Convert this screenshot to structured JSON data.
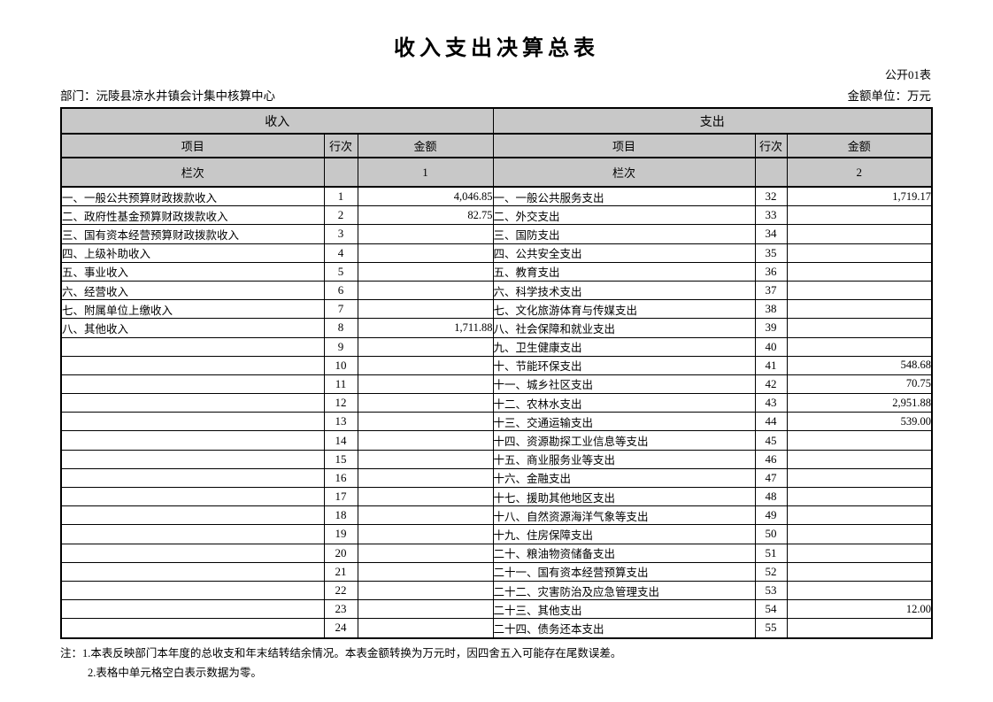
{
  "page": {
    "title": "收入支出决算总表",
    "doc_label": "公开01表",
    "department_label": "部门：沅陵县凉水井镇会计集中核算中心",
    "unit_label": "金额单位：万元"
  },
  "colors": {
    "header_bg": "#c8c8c8",
    "border": "#000000",
    "text": "#000000"
  },
  "table": {
    "sections": {
      "income": "收入",
      "expense": "支出"
    },
    "columns": {
      "item": "项目",
      "line_no": "行次",
      "amount": "金额"
    },
    "lanci_label": "栏次",
    "income_col_index": "1",
    "expense_col_index": "2",
    "rows": [
      {
        "income_item": "一、一般公共预算财政拨款收入",
        "income_line": "1",
        "income_amount": "4,046.85",
        "expense_item": "一、一般公共服务支出",
        "expense_line": "32",
        "expense_amount": "1,719.17"
      },
      {
        "income_item": "二、政府性基金预算财政拨款收入",
        "income_line": "2",
        "income_amount": "82.75",
        "expense_item": "二、外交支出",
        "expense_line": "33",
        "expense_amount": ""
      },
      {
        "income_item": "三、国有资本经营预算财政拨款收入",
        "income_line": "3",
        "income_amount": "",
        "expense_item": "三、国防支出",
        "expense_line": "34",
        "expense_amount": ""
      },
      {
        "income_item": "四、上级补助收入",
        "income_line": "4",
        "income_amount": "",
        "expense_item": "四、公共安全支出",
        "expense_line": "35",
        "expense_amount": ""
      },
      {
        "income_item": "五、事业收入",
        "income_line": "5",
        "income_amount": "",
        "expense_item": "五、教育支出",
        "expense_line": "36",
        "expense_amount": ""
      },
      {
        "income_item": "六、经营收入",
        "income_line": "6",
        "income_amount": "",
        "expense_item": "六、科学技术支出",
        "expense_line": "37",
        "expense_amount": ""
      },
      {
        "income_item": "七、附属单位上缴收入",
        "income_line": "7",
        "income_amount": "",
        "expense_item": "七、文化旅游体育与传媒支出",
        "expense_line": "38",
        "expense_amount": ""
      },
      {
        "income_item": "八、其他收入",
        "income_line": "8",
        "income_amount": "1,711.88",
        "expense_item": "八、社会保障和就业支出",
        "expense_line": "39",
        "expense_amount": ""
      },
      {
        "income_item": "",
        "income_line": "9",
        "income_amount": "",
        "expense_item": "九、卫生健康支出",
        "expense_line": "40",
        "expense_amount": ""
      },
      {
        "income_item": "",
        "income_line": "10",
        "income_amount": "",
        "expense_item": "十、节能环保支出",
        "expense_line": "41",
        "expense_amount": "548.68"
      },
      {
        "income_item": "",
        "income_line": "11",
        "income_amount": "",
        "expense_item": "十一、城乡社区支出",
        "expense_line": "42",
        "expense_amount": "70.75"
      },
      {
        "income_item": "",
        "income_line": "12",
        "income_amount": "",
        "expense_item": "十二、农林水支出",
        "expense_line": "43",
        "expense_amount": "2,951.88"
      },
      {
        "income_item": "",
        "income_line": "13",
        "income_amount": "",
        "expense_item": "十三、交通运输支出",
        "expense_line": "44",
        "expense_amount": "539.00"
      },
      {
        "income_item": "",
        "income_line": "14",
        "income_amount": "",
        "expense_item": "十四、资源勘探工业信息等支出",
        "expense_line": "45",
        "expense_amount": ""
      },
      {
        "income_item": "",
        "income_line": "15",
        "income_amount": "",
        "expense_item": "十五、商业服务业等支出",
        "expense_line": "46",
        "expense_amount": ""
      },
      {
        "income_item": "",
        "income_line": "16",
        "income_amount": "",
        "expense_item": "十六、金融支出",
        "expense_line": "47",
        "expense_amount": ""
      },
      {
        "income_item": "",
        "income_line": "17",
        "income_amount": "",
        "expense_item": "十七、援助其他地区支出",
        "expense_line": "48",
        "expense_amount": ""
      },
      {
        "income_item": "",
        "income_line": "18",
        "income_amount": "",
        "expense_item": "十八、自然资源海洋气象等支出",
        "expense_line": "49",
        "expense_amount": ""
      },
      {
        "income_item": "",
        "income_line": "19",
        "income_amount": "",
        "expense_item": "十九、住房保障支出",
        "expense_line": "50",
        "expense_amount": ""
      },
      {
        "income_item": "",
        "income_line": "20",
        "income_amount": "",
        "expense_item": "二十、粮油物资储备支出",
        "expense_line": "51",
        "expense_amount": ""
      },
      {
        "income_item": "",
        "income_line": "21",
        "income_amount": "",
        "expense_item": "二十一、国有资本经营预算支出",
        "expense_line": "52",
        "expense_amount": ""
      },
      {
        "income_item": "",
        "income_line": "22",
        "income_amount": "",
        "expense_item": "二十二、灾害防治及应急管理支出",
        "expense_line": "53",
        "expense_amount": ""
      },
      {
        "income_item": "",
        "income_line": "23",
        "income_amount": "",
        "expense_item": "二十三、其他支出",
        "expense_line": "54",
        "expense_amount": "12.00"
      },
      {
        "income_item": "",
        "income_line": "24",
        "income_amount": "",
        "expense_item": "二十四、债务还本支出",
        "expense_line": "55",
        "expense_amount": ""
      }
    ]
  },
  "notes": {
    "line1": "注：1.本表反映部门本年度的总收支和年末结转结余情况。本表金额转换为万元时，因四舍五入可能存在尾数误差。",
    "line2": "2.表格中单元格空白表示数据为零。"
  }
}
